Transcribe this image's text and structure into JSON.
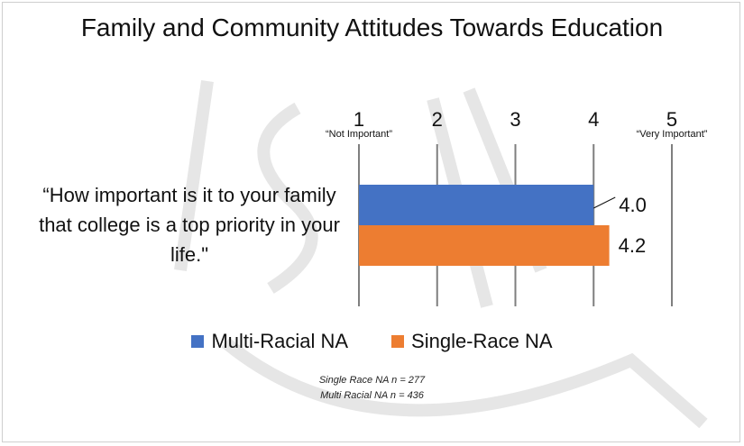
{
  "chart_data": {
    "type": "bar",
    "orientation": "horizontal",
    "title": "Family and Community Attitudes Towards Education",
    "category": "“How important is it to your family that college is a top priority in your life.\"",
    "series": [
      {
        "name": "Multi-Racial NA",
        "value": 4.0,
        "label": "4.0",
        "color": "#4472C4"
      },
      {
        "name": "Single-Race NA",
        "value": 4.2,
        "label": "4.2",
        "color": "#ED7D31"
      }
    ],
    "xlim": [
      1,
      5
    ],
    "ticks": [
      "1",
      "2",
      "3",
      "4",
      "5"
    ],
    "tick_values": [
      1,
      2,
      3,
      4,
      5
    ],
    "scale_anchors": {
      "low": "“Not Important”",
      "high": "“Very Important”"
    },
    "grid": true,
    "legend_placement": "bottom",
    "notes": [
      "Single Race NA n = 277",
      "Multi Racial NA n = 436"
    ]
  },
  "watermark": "NASA"
}
